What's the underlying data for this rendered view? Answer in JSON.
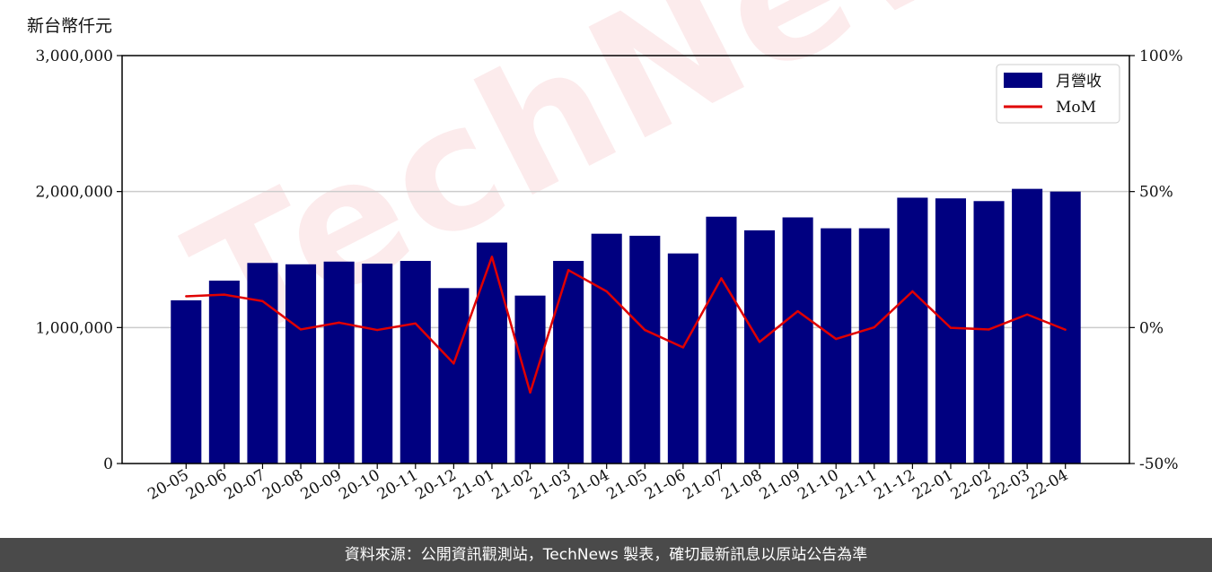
{
  "y_axis_unit": "新台幣仟元",
  "footer_text": "資料來源：公開資訊觀測站，TechNews 製表，確切最新訊息以原站公告為準",
  "watermark_text": "TechNews",
  "chart_data": {
    "type": "bar",
    "categories": [
      "20-05",
      "20-06",
      "20-07",
      "20-08",
      "20-09",
      "20-10",
      "20-11",
      "20-12",
      "21-01",
      "21-02",
      "21-03",
      "21-04",
      "21-05",
      "21-06",
      "21-07",
      "21-08",
      "21-09",
      "21-10",
      "21-11",
      "21-12",
      "22-01",
      "22-02",
      "22-03",
      "22-04"
    ],
    "series": [
      {
        "name": "月營收",
        "axis": "left",
        "type": "bar",
        "color": "#000080",
        "values": [
          1200000,
          1345000,
          1475000,
          1465000,
          1485000,
          1470000,
          1490000,
          1290000,
          1625000,
          1235000,
          1490000,
          1690000,
          1675000,
          1545000,
          1815000,
          1715000,
          1810000,
          1730000,
          1730000,
          1955000,
          1950000,
          1930000,
          2020000,
          2000000
        ]
      },
      {
        "name": "MoM",
        "axis": "right",
        "type": "line",
        "color": "#e00000",
        "values": [
          11.5,
          12.1,
          9.7,
          -0.7,
          1.8,
          -0.9,
          1.5,
          -13.2,
          26.0,
          -23.9,
          21.1,
          13.3,
          -0.9,
          -7.3,
          18.1,
          -5.3,
          6.0,
          -4.2,
          0.1,
          13.3,
          -0.1,
          -0.7,
          4.8,
          -0.8
        ]
      }
    ],
    "ylim": [
      0,
      3000000
    ],
    "yticks": [
      "0",
      "1,000,000",
      "2,000,000",
      "3,000,000"
    ],
    "y2lim": [
      -50,
      100
    ],
    "y2ticks": [
      "-50%",
      "0%",
      "50%",
      "100%"
    ],
    "grid": "horizontal",
    "legend": "top-right"
  }
}
